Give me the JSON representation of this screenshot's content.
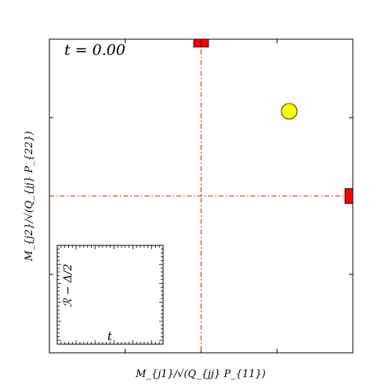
{
  "chart_data": {
    "type": "scatter",
    "annotation": "t = 0.00",
    "xlabel": "M_{j1}/√(Q_{jj} P_{11})",
    "ylabel": "M_{j2}/√(Q_{jj} P_{22})",
    "xlim": [
      -1,
      1
    ],
    "ylim": [
      -1,
      1
    ],
    "grid": false,
    "reference_lines": [
      {
        "orientation": "vertical",
        "x": 0,
        "color": "#ff0000",
        "style": "dash-dot"
      },
      {
        "orientation": "horizontal",
        "y": 0,
        "color": "#ff0000",
        "style": "dash-dot"
      }
    ],
    "markers": [
      {
        "kind": "square",
        "x": 0.0,
        "y": 1.0,
        "color": "#ff0000"
      },
      {
        "kind": "square",
        "x": 1.0,
        "y": 0.0,
        "color": "#ff0000"
      },
      {
        "kind": "circle",
        "x": 0.7,
        "y": 0.7,
        "color": "#ffff00"
      }
    ],
    "inset": {
      "xlabel": "t",
      "ylabel": "ℛ − Δ/2",
      "location": "lower-left"
    }
  },
  "colors": {
    "reference_line": "#ff0000",
    "square_marker": "#ff0000",
    "circle_marker": "#ffff00"
  }
}
